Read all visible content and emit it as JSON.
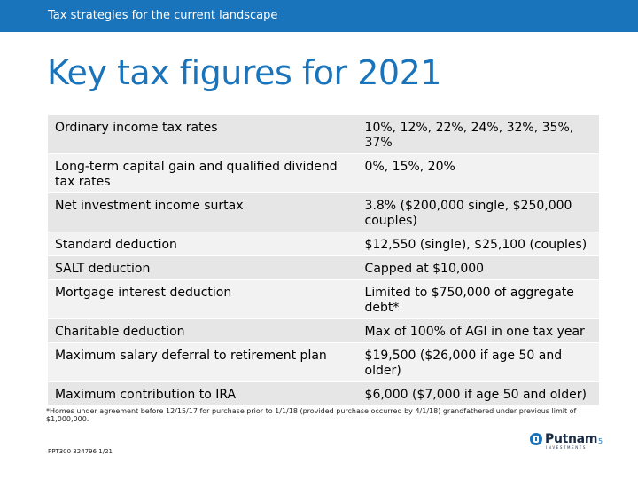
{
  "header": {
    "text": "Tax strategies for the current landscape"
  },
  "title": "Key tax figures for 2021",
  "rows": [
    {
      "label": "Ordinary income tax rates",
      "value": "10%, 12%, 22%, 24%, 32%, 35%, 37%"
    },
    {
      "label": "Long-term capital gain and qualified dividend tax rates",
      "value": "0%, 15%, 20%"
    },
    {
      "label": "Net investment income surtax",
      "value": "3.8% ($200,000 single, $250,000 couples)"
    },
    {
      "label": "Standard deduction",
      "value": "$12,550 (single), $25,100 (couples)"
    },
    {
      "label": "SALT deduction",
      "value": "Capped at $10,000"
    },
    {
      "label": "Mortgage interest deduction",
      "value": "Limited to $750,000 of aggregate debt*"
    },
    {
      "label": "Charitable deduction",
      "value": "Max of 100% of AGI in one tax year"
    },
    {
      "label": "Maximum salary deferral to retirement plan",
      "value": "$19,500 ($26,000 if age 50 and older)"
    },
    {
      "label": "Maximum contribution to IRA",
      "value": "$6,000 ($7,000 if age 50 and older)"
    }
  ],
  "footnote": "*Homes under agreement before 12/15/17 for purchase prior to 1/1/18 (provided purchase occurred by 4/1/18) grandfathered under previous limit of $1,000,000.",
  "footer": {
    "code": "PPT300 324796 1/21",
    "logo_word": "Putnam",
    "logo_sub": "INVESTMENTS",
    "page_number": "5"
  },
  "colors": {
    "brand_blue": "#1a74bb",
    "row_dark": "#e6e6e6",
    "row_light": "#f2f2f2"
  }
}
